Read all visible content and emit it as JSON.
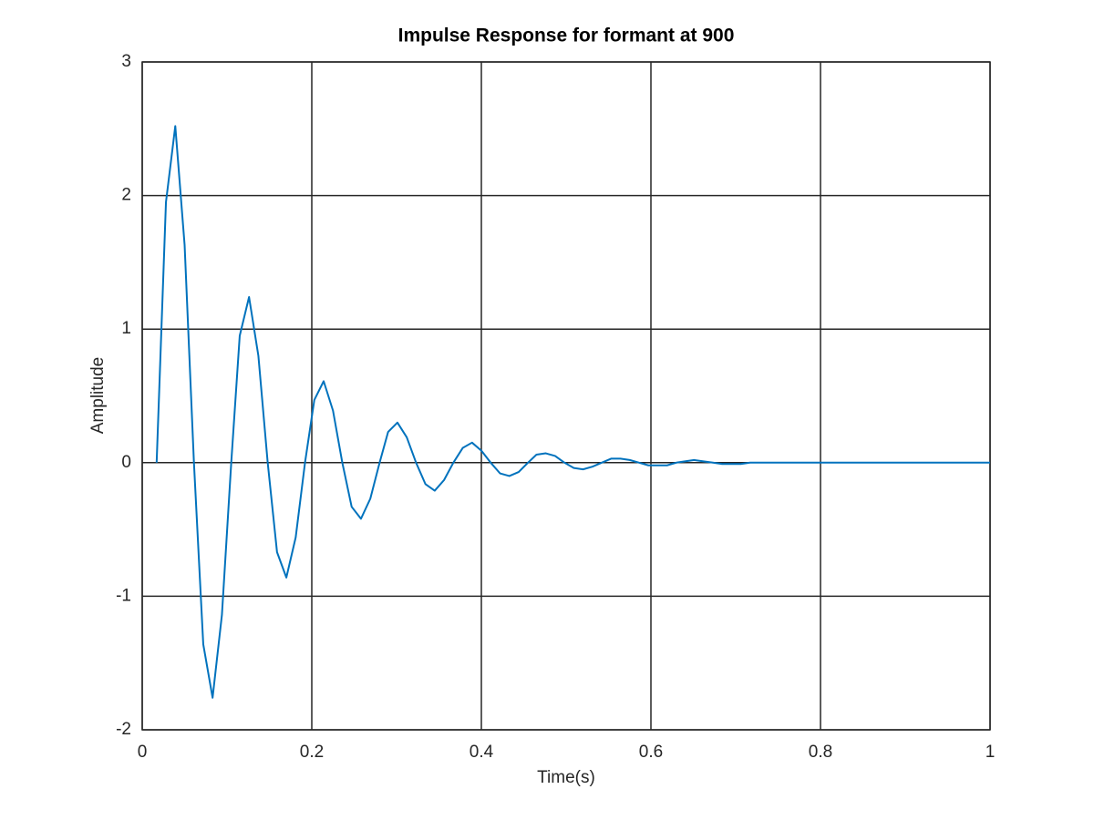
{
  "chart_data": {
    "type": "line",
    "title": "Impulse Response for formant at 900",
    "x_label": "Time(s)",
    "y_label": "Amplitude",
    "x": [
      0.017,
      0.028,
      0.039,
      0.05,
      0.061,
      0.072,
      0.083,
      0.094,
      0.105,
      0.115,
      0.126,
      0.137,
      0.148,
      0.159,
      0.17,
      0.181,
      0.192,
      0.203,
      0.214,
      0.225,
      0.236,
      0.247,
      0.258,
      0.269,
      0.28,
      0.29,
      0.301,
      0.312,
      0.323,
      0.334,
      0.345,
      0.356,
      0.367,
      0.378,
      0.389,
      0.4,
      0.411,
      0.422,
      0.433,
      0.444,
      0.455,
      0.465,
      0.476,
      0.487,
      0.498,
      0.509,
      0.52,
      0.531,
      0.542,
      0.553,
      0.564,
      0.575,
      0.586,
      0.597,
      0.608,
      0.619,
      0.63,
      0.64,
      0.651,
      0.662,
      0.673,
      0.684,
      0.695,
      0.706,
      0.717,
      1
    ],
    "series": [
      {
        "color": "#0072bd",
        "values": [
          0,
          1.95,
          2.52,
          1.63,
          0,
          -1.36,
          -1.76,
          -1.14,
          0,
          0.95,
          1.24,
          0.8,
          0,
          -0.67,
          -0.86,
          -0.56,
          0,
          0.47,
          0.61,
          0.39,
          0,
          -0.33,
          -0.42,
          -0.27,
          0,
          0.23,
          0.3,
          0.19,
          0,
          -0.16,
          -0.21,
          -0.13,
          0,
          0.11,
          0.15,
          0.09,
          0,
          -0.08,
          -0.1,
          -0.07,
          0,
          0.06,
          0.07,
          0.05,
          0,
          -0.04,
          -0.05,
          -0.03,
          0,
          0.03,
          0.03,
          0.02,
          0,
          -0.02,
          -0.02,
          -0.02,
          0,
          0.01,
          0.02,
          0.01,
          0,
          -0.01,
          -0.01,
          -0.01,
          0,
          0
        ]
      }
    ],
    "xlim": [
      0,
      1
    ],
    "ylim": [
      -2,
      3
    ],
    "xticks": [
      0,
      0.2,
      0.4,
      0.6,
      0.8,
      1
    ],
    "yticks": [
      -2,
      -1,
      0,
      1,
      2,
      3
    ],
    "grid": true
  }
}
